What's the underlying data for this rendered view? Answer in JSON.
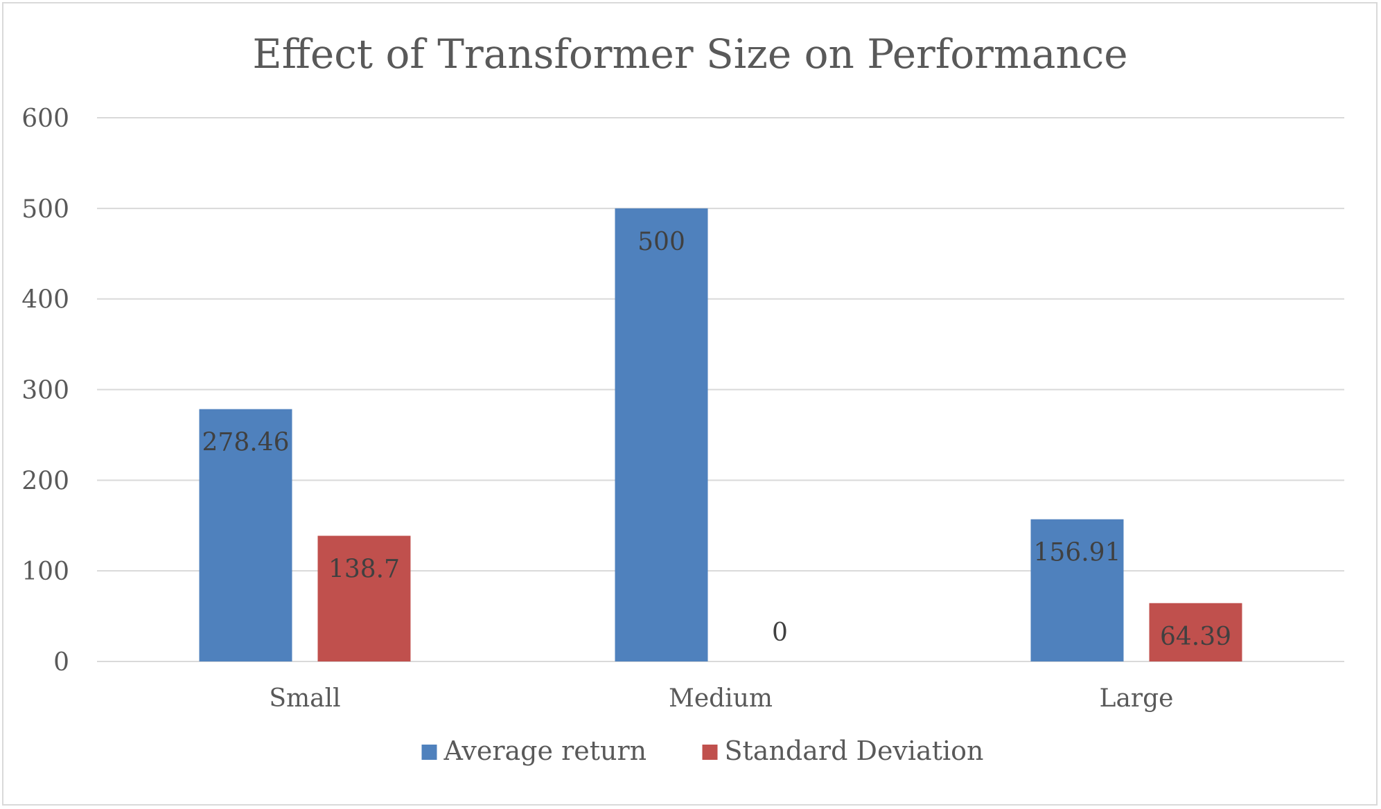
{
  "chart_data": {
    "type": "bar",
    "title": "Effect of Transformer Size on Performance",
    "xlabel": "",
    "ylabel": "",
    "categories": [
      "Small",
      "Medium",
      "Large"
    ],
    "series": [
      {
        "name": "Average return",
        "values": [
          278.46,
          500,
          156.91
        ],
        "color": "#4f81bd"
      },
      {
        "name": "Standard Deviation",
        "values": [
          138.7,
          0,
          64.39
        ],
        "color": "#c0504d"
      }
    ],
    "ylim": [
      0,
      600
    ],
    "yticks": [
      0,
      100,
      200,
      300,
      400,
      500,
      600
    ],
    "grid": true,
    "legend_position": "bottom"
  }
}
